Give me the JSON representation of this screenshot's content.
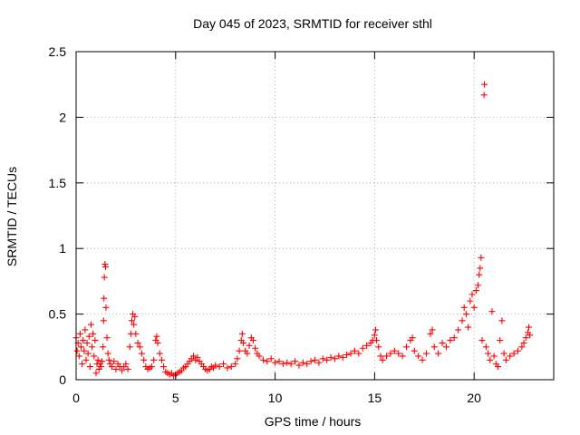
{
  "chart_data": {
    "type": "scatter",
    "title": "Day 045 of 2023, SRMTID for receiver sthl",
    "xlabel": "GPS time / hours",
    "ylabel": "SRMTID / TECUs",
    "xlim": [
      0,
      24
    ],
    "ylim": [
      0,
      2.5
    ],
    "xticks": [
      0,
      5,
      10,
      15,
      20
    ],
    "xtick_labels": [
      "0",
      "5",
      "10",
      "15",
      "20"
    ],
    "yticks": [
      0,
      0.5,
      1,
      1.5,
      2,
      2.5
    ],
    "ytick_labels": [
      "0",
      "0.5",
      "1",
      "1.5",
      "2",
      "2.5"
    ],
    "grid": true,
    "marker": "+",
    "series": [
      {
        "name": "sthl",
        "color": "#ff0000",
        "points": [
          [
            0.0,
            0.32
          ],
          [
            0.05,
            0.22
          ],
          [
            0.1,
            0.28
          ],
          [
            0.15,
            0.18
          ],
          [
            0.2,
            0.35
          ],
          [
            0.25,
            0.25
          ],
          [
            0.3,
            0.12
          ],
          [
            0.35,
            0.3
          ],
          [
            0.4,
            0.22
          ],
          [
            0.45,
            0.38
          ],
          [
            0.5,
            0.15
          ],
          [
            0.55,
            0.28
          ],
          [
            0.6,
            0.2
          ],
          [
            0.65,
            0.33
          ],
          [
            0.7,
            0.1
          ],
          [
            0.75,
            0.42
          ],
          [
            0.8,
            0.25
          ],
          [
            0.85,
            0.35
          ],
          [
            0.9,
            0.18
          ],
          [
            0.95,
            0.3
          ],
          [
            1.0,
            0.05
          ],
          [
            1.05,
            0.12
          ],
          [
            1.1,
            0.15
          ],
          [
            1.15,
            0.08
          ],
          [
            1.2,
            0.12
          ],
          [
            1.25,
            0.1
          ],
          [
            1.3,
            0.14
          ],
          [
            1.35,
            0.25
          ],
          [
            1.38,
            0.45
          ],
          [
            1.4,
            0.62
          ],
          [
            1.42,
            0.78
          ],
          [
            1.45,
            0.88
          ],
          [
            1.48,
            0.86
          ],
          [
            1.5,
            0.55
          ],
          [
            1.55,
            0.32
          ],
          [
            1.6,
            0.2
          ],
          [
            1.65,
            0.15
          ],
          [
            1.7,
            0.12
          ],
          [
            1.8,
            0.1
          ],
          [
            1.9,
            0.14
          ],
          [
            2.0,
            0.08
          ],
          [
            2.1,
            0.12
          ],
          [
            2.2,
            0.1
          ],
          [
            2.3,
            0.07
          ],
          [
            2.4,
            0.1
          ],
          [
            2.5,
            0.12
          ],
          [
            2.6,
            0.08
          ],
          [
            2.7,
            0.25
          ],
          [
            2.75,
            0.35
          ],
          [
            2.8,
            0.45
          ],
          [
            2.85,
            0.5
          ],
          [
            2.9,
            0.42
          ],
          [
            2.95,
            0.48
          ],
          [
            3.0,
            0.35
          ],
          [
            3.1,
            0.28
          ],
          [
            3.2,
            0.25
          ],
          [
            3.3,
            0.2
          ],
          [
            3.4,
            0.15
          ],
          [
            3.5,
            0.1
          ],
          [
            3.6,
            0.08
          ],
          [
            3.7,
            0.09
          ],
          [
            3.8,
            0.1
          ],
          [
            3.9,
            0.15
          ],
          [
            4.0,
            0.3
          ],
          [
            4.05,
            0.33
          ],
          [
            4.1,
            0.28
          ],
          [
            4.2,
            0.2
          ],
          [
            4.3,
            0.15
          ],
          [
            4.4,
            0.1
          ],
          [
            4.5,
            0.06
          ],
          [
            4.6,
            0.05
          ],
          [
            4.7,
            0.04
          ],
          [
            4.8,
            0.05
          ],
          [
            4.9,
            0.03
          ],
          [
            5.0,
            0.04
          ],
          [
            5.1,
            0.05
          ],
          [
            5.2,
            0.06
          ],
          [
            5.3,
            0.07
          ],
          [
            5.4,
            0.09
          ],
          [
            5.5,
            0.1
          ],
          [
            5.6,
            0.12
          ],
          [
            5.7,
            0.14
          ],
          [
            5.8,
            0.16
          ],
          [
            5.9,
            0.18
          ],
          [
            6.0,
            0.15
          ],
          [
            6.1,
            0.17
          ],
          [
            6.2,
            0.14
          ],
          [
            6.3,
            0.12
          ],
          [
            6.4,
            0.1
          ],
          [
            6.5,
            0.08
          ],
          [
            6.6,
            0.07
          ],
          [
            6.7,
            0.08
          ],
          [
            6.8,
            0.1
          ],
          [
            6.9,
            0.09
          ],
          [
            7.0,
            0.11
          ],
          [
            7.2,
            0.1
          ],
          [
            7.4,
            0.12
          ],
          [
            7.6,
            0.09
          ],
          [
            7.8,
            0.1
          ],
          [
            8.0,
            0.12
          ],
          [
            8.1,
            0.16
          ],
          [
            8.2,
            0.22
          ],
          [
            8.3,
            0.3
          ],
          [
            8.35,
            0.35
          ],
          [
            8.4,
            0.28
          ],
          [
            8.5,
            0.22
          ],
          [
            8.6,
            0.2
          ],
          [
            8.7,
            0.26
          ],
          [
            8.8,
            0.32
          ],
          [
            8.9,
            0.3
          ],
          [
            9.0,
            0.24
          ],
          [
            9.1,
            0.2
          ],
          [
            9.2,
            0.18
          ],
          [
            9.4,
            0.15
          ],
          [
            9.6,
            0.14
          ],
          [
            9.8,
            0.16
          ],
          [
            10.0,
            0.13
          ],
          [
            10.2,
            0.14
          ],
          [
            10.4,
            0.12
          ],
          [
            10.6,
            0.13
          ],
          [
            10.8,
            0.12
          ],
          [
            11.0,
            0.14
          ],
          [
            11.2,
            0.11
          ],
          [
            11.4,
            0.13
          ],
          [
            11.6,
            0.12
          ],
          [
            11.8,
            0.14
          ],
          [
            12.0,
            0.15
          ],
          [
            12.2,
            0.13
          ],
          [
            12.4,
            0.16
          ],
          [
            12.6,
            0.15
          ],
          [
            12.8,
            0.17
          ],
          [
            13.0,
            0.16
          ],
          [
            13.2,
            0.18
          ],
          [
            13.4,
            0.17
          ],
          [
            13.6,
            0.19
          ],
          [
            13.8,
            0.2
          ],
          [
            14.0,
            0.22
          ],
          [
            14.2,
            0.2
          ],
          [
            14.4,
            0.24
          ],
          [
            14.6,
            0.26
          ],
          [
            14.8,
            0.28
          ],
          [
            14.9,
            0.3
          ],
          [
            15.0,
            0.34
          ],
          [
            15.05,
            0.38
          ],
          [
            15.1,
            0.3
          ],
          [
            15.2,
            0.25
          ],
          [
            15.3,
            0.18
          ],
          [
            15.4,
            0.15
          ],
          [
            15.6,
            0.18
          ],
          [
            15.8,
            0.2
          ],
          [
            16.0,
            0.22
          ],
          [
            16.2,
            0.2
          ],
          [
            16.4,
            0.18
          ],
          [
            16.6,
            0.25
          ],
          [
            16.8,
            0.3
          ],
          [
            16.9,
            0.32
          ],
          [
            17.0,
            0.22
          ],
          [
            17.2,
            0.18
          ],
          [
            17.4,
            0.15
          ],
          [
            17.6,
            0.2
          ],
          [
            17.8,
            0.35
          ],
          [
            17.9,
            0.38
          ],
          [
            18.0,
            0.25
          ],
          [
            18.2,
            0.2
          ],
          [
            18.4,
            0.28
          ],
          [
            18.6,
            0.25
          ],
          [
            18.8,
            0.3
          ],
          [
            19.0,
            0.32
          ],
          [
            19.2,
            0.38
          ],
          [
            19.4,
            0.45
          ],
          [
            19.5,
            0.55
          ],
          [
            19.6,
            0.5
          ],
          [
            19.7,
            0.4
          ],
          [
            19.8,
            0.6
          ],
          [
            19.9,
            0.65
          ],
          [
            20.0,
            0.55
          ],
          [
            20.1,
            0.68
          ],
          [
            20.2,
            0.72
          ],
          [
            20.25,
            0.8
          ],
          [
            20.3,
            0.85
          ],
          [
            20.35,
            0.93
          ],
          [
            20.4,
            0.3
          ],
          [
            20.5,
            2.17
          ],
          [
            20.52,
            2.25
          ],
          [
            20.6,
            0.25
          ],
          [
            20.7,
            0.2
          ],
          [
            20.8,
            0.15
          ],
          [
            20.9,
            0.52
          ],
          [
            21.0,
            0.18
          ],
          [
            21.1,
            0.12
          ],
          [
            21.2,
            0.1
          ],
          [
            21.3,
            0.3
          ],
          [
            21.4,
            0.45
          ],
          [
            21.5,
            0.2
          ],
          [
            21.6,
            0.15
          ],
          [
            21.8,
            0.18
          ],
          [
            22.0,
            0.2
          ],
          [
            22.2,
            0.22
          ],
          [
            22.4,
            0.25
          ],
          [
            22.5,
            0.28
          ],
          [
            22.6,
            0.32
          ],
          [
            22.7,
            0.36
          ],
          [
            22.75,
            0.4
          ],
          [
            22.8,
            0.34
          ]
        ]
      }
    ]
  }
}
